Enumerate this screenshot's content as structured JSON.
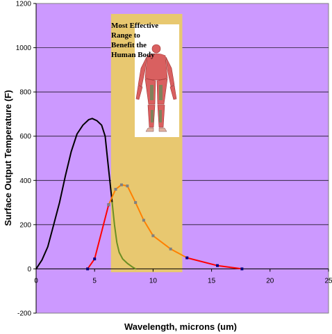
{
  "chart_data": {
    "type": "line",
    "title": "",
    "xlabel": "Wavelength, microns (um)",
    "ylabel": "Surface Output Temperature (F)",
    "xlim": [
      0,
      25
    ],
    "ylim": [
      -200,
      1200
    ],
    "x_ticks": [
      0,
      5,
      10,
      15,
      20,
      25
    ],
    "y_ticks": [
      -200,
      0,
      200,
      400,
      600,
      800,
      1000,
      1200
    ],
    "grid": "horizontal",
    "legend": "none",
    "plot_background": "#cc99ff",
    "highlight_band": {
      "x_start": 6.4,
      "x_end": 12.5,
      "color": "#e8c870",
      "label_lines": [
        "Most Effective",
        "Range to",
        "Benefit the",
        "Human Body"
      ]
    },
    "series": [
      {
        "color": "#000000",
        "markers": false,
        "points": [
          [
            0,
            0
          ],
          [
            0.5,
            40
          ],
          [
            1,
            100
          ],
          [
            1.5,
            200
          ],
          [
            2,
            300
          ],
          [
            2.5,
            420
          ],
          [
            3,
            530
          ],
          [
            3.5,
            610
          ],
          [
            4,
            650
          ],
          [
            4.5,
            675
          ],
          [
            4.8,
            680
          ],
          [
            5.2,
            670
          ],
          [
            5.6,
            650
          ],
          [
            5.9,
            600
          ],
          [
            6.1,
            500
          ],
          [
            6.3,
            400
          ],
          [
            6.5,
            300
          ]
        ]
      },
      {
        "color": "#6b8e23",
        "markers": false,
        "points": [
          [
            6.5,
            300
          ],
          [
            6.7,
            200
          ],
          [
            6.9,
            120
          ],
          [
            7.1,
            75
          ],
          [
            7.4,
            45
          ],
          [
            7.8,
            25
          ],
          [
            8.2,
            10
          ],
          [
            8.5,
            0
          ]
        ]
      },
      {
        "color": "#ff0000",
        "markers": true,
        "marker_color": "#000080",
        "points": [
          [
            4.4,
            0
          ],
          [
            5,
            45
          ],
          [
            6.2,
            290
          ]
        ]
      },
      {
        "color": "#ff8000",
        "markers": true,
        "marker_color": "#808080",
        "points": [
          [
            6.2,
            290
          ],
          [
            6.8,
            360
          ],
          [
            7.3,
            380
          ],
          [
            7.8,
            375
          ],
          [
            8.5,
            300
          ],
          [
            9.2,
            220
          ],
          [
            10,
            150
          ],
          [
            11.5,
            90
          ],
          [
            12.9,
            50
          ]
        ]
      },
      {
        "color": "#ff0000",
        "markers": true,
        "marker_color": "#000080",
        "points": [
          [
            12.9,
            50
          ],
          [
            15.5,
            15
          ],
          [
            17.6,
            0
          ]
        ]
      }
    ]
  }
}
